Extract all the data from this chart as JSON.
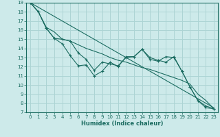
{
  "xlabel": "Humidex (Indice chaleur)",
  "xlim": [
    -0.5,
    23.5
  ],
  "ylim": [
    7,
    19
  ],
  "yticks": [
    7,
    8,
    9,
    10,
    11,
    12,
    13,
    14,
    15,
    16,
    17,
    18,
    19
  ],
  "xticks": [
    0,
    1,
    2,
    3,
    4,
    5,
    6,
    7,
    8,
    9,
    10,
    11,
    12,
    13,
    14,
    15,
    16,
    17,
    18,
    19,
    20,
    21,
    22,
    23
  ],
  "background_color": "#cdeaea",
  "grid_color": "#acd4d4",
  "line_color": "#1a6b60",
  "lines": [
    {
      "x": [
        0,
        23
      ],
      "y": [
        19,
        7.5
      ],
      "marker": false
    },
    {
      "x": [
        0,
        1,
        2,
        3,
        4,
        5,
        6,
        7,
        8,
        9,
        10,
        11,
        12,
        13,
        14,
        15,
        16,
        17,
        18,
        19,
        20,
        21,
        22,
        23
      ],
      "y": [
        19,
        18,
        16.2,
        15.1,
        14.5,
        13.2,
        12.1,
        12.2,
        11.0,
        11.5,
        12.5,
        12.0,
        13.1,
        13.1,
        13.9,
        13.0,
        12.7,
        12.5,
        13.1,
        11.5,
        9.8,
        8.3,
        7.5,
        7.4
      ],
      "marker": true
    },
    {
      "x": [
        0,
        1,
        2,
        3,
        4,
        5,
        6,
        7,
        8,
        9,
        10,
        11,
        12,
        13,
        14,
        15,
        16,
        17,
        18,
        19,
        20,
        21,
        22,
        23
      ],
      "y": [
        19,
        18,
        16.3,
        15.8,
        15.0,
        14.8,
        14.4,
        14.0,
        13.7,
        13.4,
        13.0,
        12.7,
        12.5,
        12.2,
        11.9,
        11.7,
        11.4,
        11.1,
        10.8,
        10.5,
        10.1,
        9.0,
        8.3,
        7.4
      ],
      "marker": false
    },
    {
      "x": [
        0,
        1,
        2,
        3,
        4,
        5,
        6,
        7,
        8,
        9,
        10,
        11,
        12,
        13,
        14,
        15,
        16,
        17,
        18,
        19,
        20,
        21,
        22,
        23
      ],
      "y": [
        19,
        18,
        16.2,
        15.1,
        15.0,
        14.8,
        13.5,
        12.8,
        11.6,
        12.5,
        12.3,
        12.1,
        13.0,
        13.1,
        13.9,
        12.8,
        12.6,
        13.1,
        13.0,
        11.5,
        9.8,
        8.3,
        7.7,
        7.4
      ],
      "marker": true
    }
  ]
}
